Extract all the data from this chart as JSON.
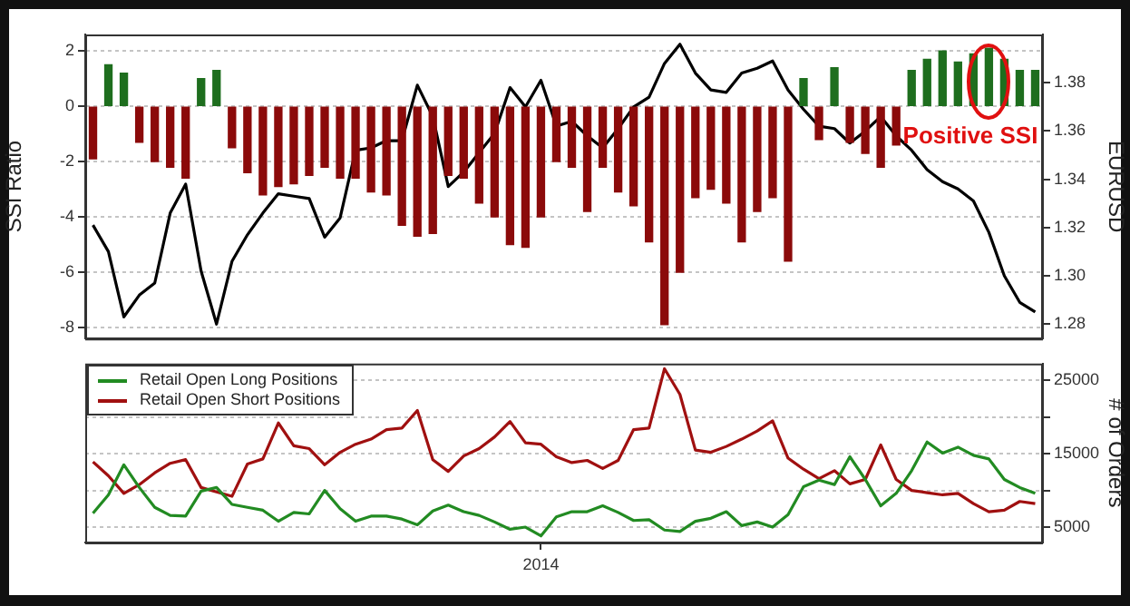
{
  "chart_data": [
    {
      "type": "bar",
      "ylabel": "SSI Ratio",
      "y2label": "EURUSD",
      "categories": [
        null,
        null,
        null,
        null,
        null,
        null,
        null,
        null,
        null,
        null,
        null,
        null,
        null,
        null,
        null,
        null,
        null,
        null,
        null,
        null,
        null,
        null,
        null,
        null,
        null,
        null,
        null,
        null,
        null,
        null,
        null,
        null,
        null,
        null,
        null,
        null,
        null,
        null,
        null,
        null,
        null,
        null,
        null,
        null,
        null,
        null,
        null,
        null,
        null,
        null,
        null,
        null,
        null,
        null,
        null,
        null,
        null,
        null,
        null,
        null,
        null,
        null
      ],
      "ylim": [
        -8.4,
        2.6
      ],
      "yticks": [
        -8,
        -6,
        -4,
        -2,
        0,
        2
      ],
      "y2lim": [
        1.274,
        1.4
      ],
      "y2ticks": [
        1.28,
        {
          "value": 1.3,
          "label": "1.30"
        },
        1.32,
        1.34,
        1.36,
        1.38
      ],
      "grid": "y",
      "tick_labels": "y",
      "annotations": [
        "Positive SSI"
      ],
      "series": [
        {
          "values": [
            -1.9,
            1.5,
            1.2,
            -1.3,
            -2.0,
            -2.2,
            -2.6,
            1.0,
            1.3,
            -1.5,
            -2.4,
            -3.2,
            -2.9,
            -2.8,
            -2.5,
            -2.2,
            -2.6,
            -2.6,
            -3.1,
            -3.2,
            -4.3,
            -4.7,
            -4.6,
            -2.5,
            -2.6,
            -3.5,
            -4.0,
            -5.0,
            -5.1,
            -4.0,
            -2.0,
            -2.2,
            -3.8,
            -2.2,
            -3.1,
            -3.6,
            -4.9,
            -7.9,
            -6.0,
            -3.3,
            -3.0,
            -3.5,
            -4.9,
            -3.8,
            -3.3,
            -5.6,
            1.0,
            -1.2,
            1.4,
            -1.3,
            -1.7,
            -2.2,
            -1.4,
            1.3,
            1.7,
            2.0,
            1.6,
            1.9,
            2.1,
            1.7,
            1.3,
            1.3
          ],
          "colors": [
            "#8b0a0a",
            "#1e6e1e",
            "#1e6e1e",
            "#8b0a0a",
            "#8b0a0a",
            "#8b0a0a",
            "#8b0a0a",
            "#1e6e1e",
            "#1e6e1e",
            "#8b0a0a",
            "#8b0a0a",
            "#8b0a0a",
            "#8b0a0a",
            "#8b0a0a",
            "#8b0a0a",
            "#8b0a0a",
            "#8b0a0a",
            "#8b0a0a",
            "#8b0a0a",
            "#8b0a0a",
            "#8b0a0a",
            "#8b0a0a",
            "#8b0a0a",
            "#8b0a0a",
            "#8b0a0a",
            "#8b0a0a",
            "#8b0a0a",
            "#8b0a0a",
            "#8b0a0a",
            "#8b0a0a",
            "#8b0a0a",
            "#8b0a0a",
            "#8b0a0a",
            "#8b0a0a",
            "#8b0a0a",
            "#8b0a0a",
            "#8b0a0a",
            "#8b0a0a",
            "#8b0a0a",
            "#8b0a0a",
            "#8b0a0a",
            "#8b0a0a",
            "#8b0a0a",
            "#8b0a0a",
            "#8b0a0a",
            "#8b0a0a",
            "#1e6e1e",
            "#8b0a0a",
            "#1e6e1e",
            "#8b0a0a",
            "#8b0a0a",
            "#8b0a0a",
            "#8b0a0a",
            "#1e6e1e",
            "#1e6e1e",
            "#1e6e1e",
            "#1e6e1e",
            "#1e6e1e",
            "#1e6e1e",
            "#1e6e1e",
            "#1e6e1e",
            "#1e6e1e"
          ]
        },
        {
          "type": "line",
          "axis": "y2",
          "color": "#000000",
          "values": [
            1.321,
            1.31,
            1.283,
            1.292,
            1.297,
            1.326,
            1.338,
            1.302,
            1.28,
            1.306,
            1.317,
            1.326,
            1.334,
            1.333,
            1.332,
            1.316,
            1.324,
            1.352,
            1.353,
            1.356,
            1.356,
            1.379,
            1.366,
            1.337,
            1.343,
            1.351,
            1.359,
            1.378,
            1.37,
            1.381,
            1.362,
            1.364,
            1.358,
            1.353,
            1.361,
            1.37,
            1.374,
            1.388,
            1.396,
            1.384,
            1.377,
            1.376,
            1.384,
            1.386,
            1.389,
            1.377,
            1.369,
            1.362,
            1.361,
            1.355,
            1.36,
            1.366,
            1.358,
            1.352,
            1.344,
            1.339,
            1.336,
            1.331,
            1.318,
            1.3,
            1.289,
            1.285
          ]
        }
      ]
    },
    {
      "type": "line",
      "y2label": "# of Orders",
      "categories": [
        null,
        null,
        null,
        null,
        null,
        null,
        null,
        null,
        null,
        null,
        null,
        null,
        null,
        null,
        null,
        null,
        null,
        null,
        null,
        null,
        null,
        null,
        null,
        null,
        null,
        null,
        null,
        null,
        null,
        "2014",
        null,
        null,
        null,
        null,
        null,
        null,
        null,
        null,
        null,
        null,
        null,
        null,
        null,
        null,
        null,
        null,
        null,
        null,
        null,
        null,
        null,
        null,
        null,
        null,
        null,
        null,
        null,
        null,
        null,
        null,
        null,
        null
      ],
      "y2lim": [
        2900,
        27300
      ],
      "y2ticks": [
        5000,
        {
          "value": 10000,
          "label": null
        },
        15000,
        {
          "value": 20000,
          "label": null
        },
        25000
      ],
      "grid": "y",
      "legend": "top left",
      "series": [
        {
          "name": "Retail Open Long Positions",
          "color": "#228b22",
          "axis": "y2",
          "values": [
            6900,
            9400,
            13500,
            10400,
            7700,
            6600,
            6500,
            9900,
            10400,
            8100,
            7700,
            7300,
            5800,
            7000,
            6800,
            10000,
            7500,
            5800,
            6500,
            6500,
            6100,
            5300,
            7200,
            8000,
            7100,
            6600,
            5700,
            4700,
            5000,
            3800,
            6400,
            7100,
            7100,
            7900,
            7000,
            5900,
            6000,
            4600,
            4400,
            5800,
            6200,
            7100,
            5200,
            5700,
            5000,
            6700,
            10500,
            11400,
            10800,
            14600,
            11500,
            7900,
            9600,
            12700,
            16600,
            15100,
            15900,
            14800,
            14300,
            11500,
            10400,
            9600
          ]
        },
        {
          "name": "Retail Open Short Positions",
          "color": "#a01010",
          "axis": "y2",
          "values": [
            13900,
            12000,
            9600,
            10800,
            12400,
            13700,
            14200,
            10400,
            9800,
            9200,
            13600,
            14300,
            19200,
            16100,
            15700,
            13500,
            15200,
            16300,
            17000,
            18300,
            18500,
            20900,
            14200,
            12600,
            14700,
            15700,
            17300,
            19400,
            16500,
            16300,
            14600,
            13800,
            14100,
            13000,
            14100,
            18300,
            18500,
            26600,
            23100,
            15500,
            15200,
            16000,
            17000,
            18100,
            19500,
            14400,
            12900,
            11600,
            12700,
            10900,
            11500,
            16200,
            11500,
            10000,
            9700,
            9400,
            9600,
            8200,
            7100,
            7300,
            8500,
            8200
          ]
        }
      ]
    }
  ]
}
